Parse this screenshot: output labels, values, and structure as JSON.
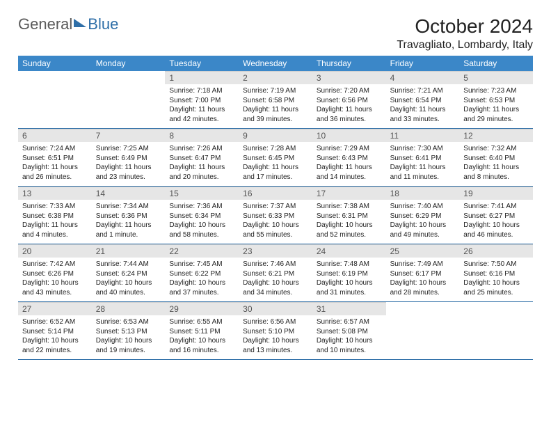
{
  "logo": {
    "part1": "General",
    "part2": "Blue"
  },
  "title": "October 2024",
  "location": "Travagliato, Lombardy, Italy",
  "colors": {
    "header_bg": "#3b87c8",
    "header_text": "#ffffff",
    "daynum_bg": "#e6e6e6",
    "daynum_text": "#555555",
    "week_border": "#2f6fa8",
    "page_bg": "#ffffff",
    "body_text": "#222222"
  },
  "day_labels": [
    "Sunday",
    "Monday",
    "Tuesday",
    "Wednesday",
    "Thursday",
    "Friday",
    "Saturday"
  ],
  "weeks": [
    [
      null,
      null,
      {
        "n": "1",
        "sunrise": "7:18 AM",
        "sunset": "7:00 PM",
        "daylight": "11 hours and 42 minutes."
      },
      {
        "n": "2",
        "sunrise": "7:19 AM",
        "sunset": "6:58 PM",
        "daylight": "11 hours and 39 minutes."
      },
      {
        "n": "3",
        "sunrise": "7:20 AM",
        "sunset": "6:56 PM",
        "daylight": "11 hours and 36 minutes."
      },
      {
        "n": "4",
        "sunrise": "7:21 AM",
        "sunset": "6:54 PM",
        "daylight": "11 hours and 33 minutes."
      },
      {
        "n": "5",
        "sunrise": "7:23 AM",
        "sunset": "6:53 PM",
        "daylight": "11 hours and 29 minutes."
      }
    ],
    [
      {
        "n": "6",
        "sunrise": "7:24 AM",
        "sunset": "6:51 PM",
        "daylight": "11 hours and 26 minutes."
      },
      {
        "n": "7",
        "sunrise": "7:25 AM",
        "sunset": "6:49 PM",
        "daylight": "11 hours and 23 minutes."
      },
      {
        "n": "8",
        "sunrise": "7:26 AM",
        "sunset": "6:47 PM",
        "daylight": "11 hours and 20 minutes."
      },
      {
        "n": "9",
        "sunrise": "7:28 AM",
        "sunset": "6:45 PM",
        "daylight": "11 hours and 17 minutes."
      },
      {
        "n": "10",
        "sunrise": "7:29 AM",
        "sunset": "6:43 PM",
        "daylight": "11 hours and 14 minutes."
      },
      {
        "n": "11",
        "sunrise": "7:30 AM",
        "sunset": "6:41 PM",
        "daylight": "11 hours and 11 minutes."
      },
      {
        "n": "12",
        "sunrise": "7:32 AM",
        "sunset": "6:40 PM",
        "daylight": "11 hours and 8 minutes."
      }
    ],
    [
      {
        "n": "13",
        "sunrise": "7:33 AM",
        "sunset": "6:38 PM",
        "daylight": "11 hours and 4 minutes."
      },
      {
        "n": "14",
        "sunrise": "7:34 AM",
        "sunset": "6:36 PM",
        "daylight": "11 hours and 1 minute."
      },
      {
        "n": "15",
        "sunrise": "7:36 AM",
        "sunset": "6:34 PM",
        "daylight": "10 hours and 58 minutes."
      },
      {
        "n": "16",
        "sunrise": "7:37 AM",
        "sunset": "6:33 PM",
        "daylight": "10 hours and 55 minutes."
      },
      {
        "n": "17",
        "sunrise": "7:38 AM",
        "sunset": "6:31 PM",
        "daylight": "10 hours and 52 minutes."
      },
      {
        "n": "18",
        "sunrise": "7:40 AM",
        "sunset": "6:29 PM",
        "daylight": "10 hours and 49 minutes."
      },
      {
        "n": "19",
        "sunrise": "7:41 AM",
        "sunset": "6:27 PM",
        "daylight": "10 hours and 46 minutes."
      }
    ],
    [
      {
        "n": "20",
        "sunrise": "7:42 AM",
        "sunset": "6:26 PM",
        "daylight": "10 hours and 43 minutes."
      },
      {
        "n": "21",
        "sunrise": "7:44 AM",
        "sunset": "6:24 PM",
        "daylight": "10 hours and 40 minutes."
      },
      {
        "n": "22",
        "sunrise": "7:45 AM",
        "sunset": "6:22 PM",
        "daylight": "10 hours and 37 minutes."
      },
      {
        "n": "23",
        "sunrise": "7:46 AM",
        "sunset": "6:21 PM",
        "daylight": "10 hours and 34 minutes."
      },
      {
        "n": "24",
        "sunrise": "7:48 AM",
        "sunset": "6:19 PM",
        "daylight": "10 hours and 31 minutes."
      },
      {
        "n": "25",
        "sunrise": "7:49 AM",
        "sunset": "6:17 PM",
        "daylight": "10 hours and 28 minutes."
      },
      {
        "n": "26",
        "sunrise": "7:50 AM",
        "sunset": "6:16 PM",
        "daylight": "10 hours and 25 minutes."
      }
    ],
    [
      {
        "n": "27",
        "sunrise": "6:52 AM",
        "sunset": "5:14 PM",
        "daylight": "10 hours and 22 minutes."
      },
      {
        "n": "28",
        "sunrise": "6:53 AM",
        "sunset": "5:13 PM",
        "daylight": "10 hours and 19 minutes."
      },
      {
        "n": "29",
        "sunrise": "6:55 AM",
        "sunset": "5:11 PM",
        "daylight": "10 hours and 16 minutes."
      },
      {
        "n": "30",
        "sunrise": "6:56 AM",
        "sunset": "5:10 PM",
        "daylight": "10 hours and 13 minutes."
      },
      {
        "n": "31",
        "sunrise": "6:57 AM",
        "sunset": "5:08 PM",
        "daylight": "10 hours and 10 minutes."
      },
      null,
      null
    ]
  ],
  "label_prefix": {
    "sunrise": "Sunrise: ",
    "sunset": "Sunset: ",
    "daylight": "Daylight: "
  }
}
